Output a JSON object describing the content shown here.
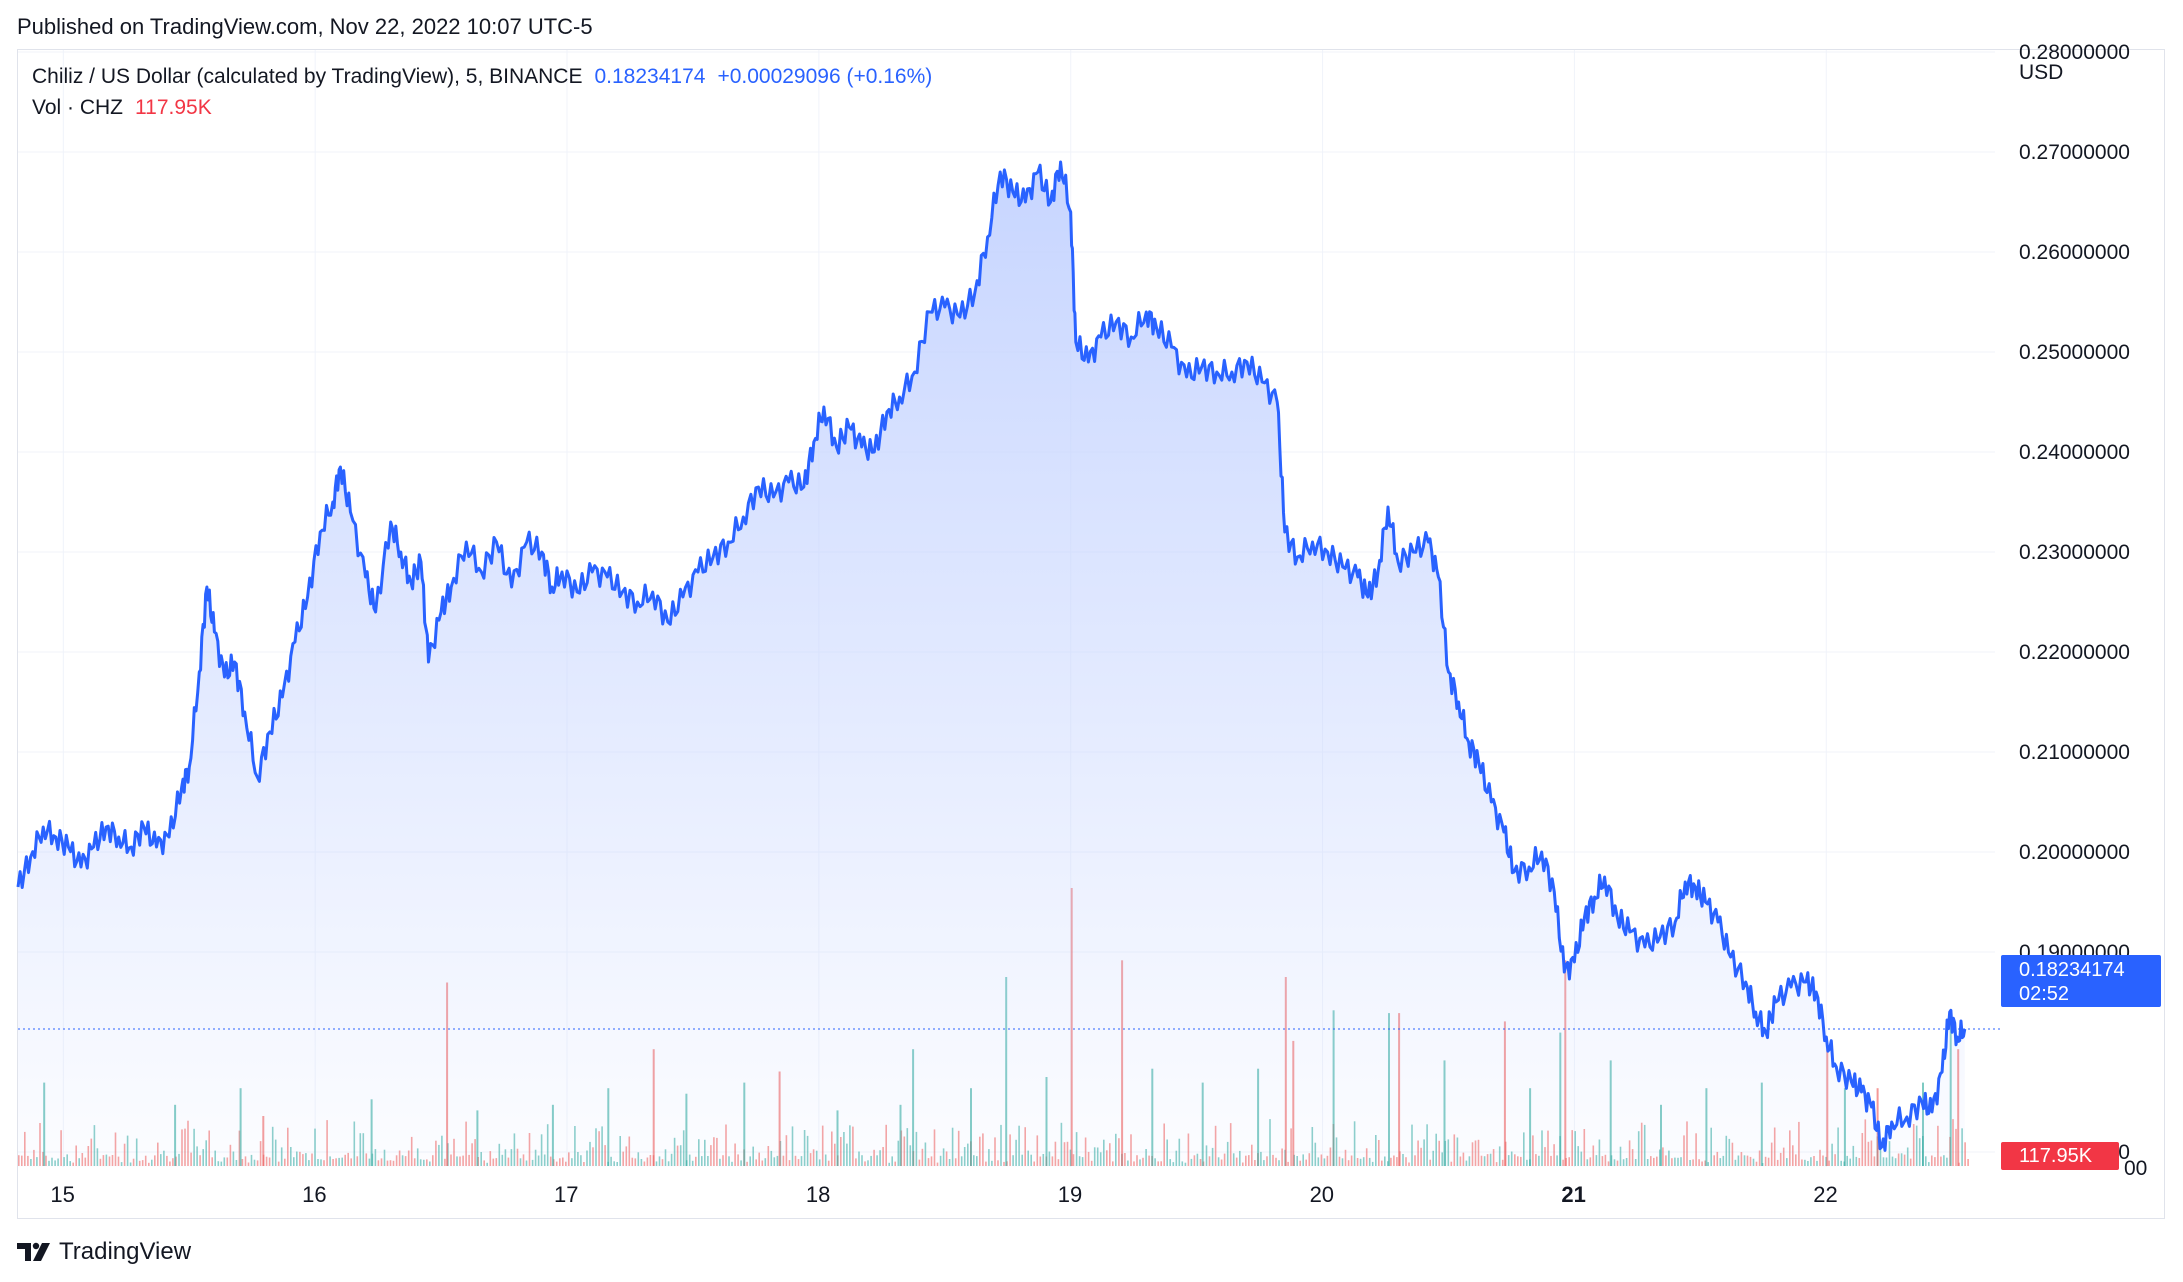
{
  "header": {
    "published": "Published on TradingView.com, Nov 22, 2022 10:07 UTC-5"
  },
  "legend": {
    "symbol": "Chiliz / US Dollar (calculated by TradingView), 5, BINANCE",
    "price": "0.18234174",
    "change": "+0.00029096 (+0.16%)",
    "volume_label": "Vol · CHZ",
    "volume_value": "117.95K"
  },
  "axis": {
    "currency": "USD"
  },
  "price_tag": {
    "price": "0.18234174",
    "countdown": "02:52"
  },
  "volume_tag": {
    "value": "117.95K"
  },
  "footer": {
    "brand": "TradingView"
  },
  "colors": {
    "line": "#2962ff",
    "area_top": "#c4d3ff",
    "up_volume": "#26a69a",
    "down_volume": "#ef5350",
    "grid": "#f0f3fa"
  },
  "chart_data": {
    "type": "area",
    "x_ticks": [
      {
        "label": "15",
        "t": 0.18,
        "bold": false
      },
      {
        "label": "16",
        "t": 1.18,
        "bold": false
      },
      {
        "label": "17",
        "t": 2.18,
        "bold": false
      },
      {
        "label": "18",
        "t": 3.18,
        "bold": false
      },
      {
        "label": "19",
        "t": 4.18,
        "bold": false
      },
      {
        "label": "20",
        "t": 5.18,
        "bold": false
      },
      {
        "label": "21",
        "t": 6.18,
        "bold": true
      },
      {
        "label": "22",
        "t": 7.18,
        "bold": false
      }
    ],
    "y_ticks": [
      "0.28000000",
      "0.27000000",
      "0.26000000",
      "0.25000000",
      "0.24000000",
      "0.23000000",
      "0.22000000",
      "0.21000000",
      "0.20000000",
      "0.19000000",
      "0.17000000"
    ],
    "y_tick_values": [
      0.28,
      0.27,
      0.26,
      0.25,
      0.24,
      0.23,
      0.22,
      0.21,
      0.2,
      0.19,
      0.17
    ],
    "ylim": [
      0.1685,
      0.2802
    ],
    "xlim": [
      0,
      7.85
    ],
    "series": [
      {
        "points": [
          [
            0.0,
            0.1965
          ],
          [
            0.05,
            0.1995
          ],
          [
            0.1,
            0.2025
          ],
          [
            0.15,
            0.2015
          ],
          [
            0.2,
            0.2005
          ],
          [
            0.25,
            0.1985
          ],
          [
            0.3,
            0.2005
          ],
          [
            0.35,
            0.2025
          ],
          [
            0.4,
            0.2015
          ],
          [
            0.45,
            0.2005
          ],
          [
            0.5,
            0.2025
          ],
          [
            0.55,
            0.2005
          ],
          [
            0.6,
            0.2015
          ],
          [
            0.65,
            0.2065
          ],
          [
            0.68,
            0.2085
          ],
          [
            0.72,
            0.218
          ],
          [
            0.75,
            0.2265
          ],
          [
            0.78,
            0.222
          ],
          [
            0.82,
            0.2175
          ],
          [
            0.86,
            0.219
          ],
          [
            0.9,
            0.214
          ],
          [
            0.95,
            0.2075
          ],
          [
            1.0,
            0.212
          ],
          [
            1.05,
            0.2155
          ],
          [
            1.1,
            0.221
          ],
          [
            1.15,
            0.2255
          ],
          [
            1.2,
            0.232
          ],
          [
            1.25,
            0.235
          ],
          [
            1.28,
            0.2385
          ],
          [
            1.32,
            0.234
          ],
          [
            1.38,
            0.2275
          ],
          [
            1.42,
            0.224
          ],
          [
            1.48,
            0.233
          ],
          [
            1.52,
            0.23
          ],
          [
            1.56,
            0.227
          ],
          [
            1.6,
            0.229
          ],
          [
            1.63,
            0.219
          ],
          [
            1.68,
            0.224
          ],
          [
            1.72,
            0.2265
          ],
          [
            1.78,
            0.231
          ],
          [
            1.84,
            0.228
          ],
          [
            1.9,
            0.231
          ],
          [
            1.96,
            0.2265
          ],
          [
            2.02,
            0.231
          ],
          [
            2.08,
            0.23
          ],
          [
            2.12,
            0.2265
          ],
          [
            2.16,
            0.228
          ],
          [
            2.22,
            0.226
          ],
          [
            2.28,
            0.228
          ],
          [
            2.34,
            0.2275
          ],
          [
            2.4,
            0.226
          ],
          [
            2.46,
            0.225
          ],
          [
            2.52,
            0.226
          ],
          [
            2.58,
            0.223
          ],
          [
            2.64,
            0.2255
          ],
          [
            2.7,
            0.228
          ],
          [
            2.76,
            0.2295
          ],
          [
            2.82,
            0.231
          ],
          [
            2.88,
            0.2335
          ],
          [
            2.94,
            0.2365
          ],
          [
            3.0,
            0.2355
          ],
          [
            3.06,
            0.237
          ],
          [
            3.12,
            0.2365
          ],
          [
            3.16,
            0.241
          ],
          [
            3.2,
            0.2445
          ],
          [
            3.25,
            0.2405
          ],
          [
            3.3,
            0.2425
          ],
          [
            3.35,
            0.2405
          ],
          [
            3.4,
            0.24
          ],
          [
            3.45,
            0.244
          ],
          [
            3.5,
            0.2455
          ],
          [
            3.56,
            0.248
          ],
          [
            3.62,
            0.254
          ],
          [
            3.68,
            0.2545
          ],
          [
            3.74,
            0.2535
          ],
          [
            3.8,
            0.256
          ],
          [
            3.85,
            0.2615
          ],
          [
            3.9,
            0.268
          ],
          [
            3.95,
            0.266
          ],
          [
            4.0,
            0.265
          ],
          [
            4.05,
            0.268
          ],
          [
            4.1,
            0.265
          ],
          [
            4.14,
            0.269
          ],
          [
            4.18,
            0.264
          ],
          [
            4.2,
            0.251
          ],
          [
            4.25,
            0.249
          ],
          [
            4.3,
            0.2515
          ],
          [
            4.36,
            0.253
          ],
          [
            4.42,
            0.2515
          ],
          [
            4.48,
            0.254
          ],
          [
            4.52,
            0.2525
          ],
          [
            4.58,
            0.2505
          ],
          [
            4.64,
            0.2475
          ],
          [
            4.7,
            0.2485
          ],
          [
            4.76,
            0.248
          ],
          [
            4.82,
            0.248
          ],
          [
            4.88,
            0.249
          ],
          [
            4.94,
            0.247
          ],
          [
            5.0,
            0.245
          ],
          [
            5.03,
            0.232
          ],
          [
            5.08,
            0.2295
          ],
          [
            5.14,
            0.231
          ],
          [
            5.2,
            0.23
          ],
          [
            5.26,
            0.2285
          ],
          [
            5.32,
            0.2275
          ],
          [
            5.36,
            0.2255
          ],
          [
            5.4,
            0.228
          ],
          [
            5.44,
            0.2345
          ],
          [
            5.48,
            0.229
          ],
          [
            5.54,
            0.23
          ],
          [
            5.6,
            0.231
          ],
          [
            5.64,
            0.2275
          ],
          [
            5.68,
            0.218
          ],
          [
            5.72,
            0.215
          ],
          [
            5.76,
            0.211
          ],
          [
            5.8,
            0.209
          ],
          [
            5.85,
            0.205
          ],
          [
            5.9,
            0.202
          ],
          [
            5.94,
            0.198
          ],
          [
            6.0,
            0.1985
          ],
          [
            6.05,
            0.2
          ],
          [
            6.1,
            0.196
          ],
          [
            6.14,
            0.188
          ],
          [
            6.18,
            0.189
          ],
          [
            6.22,
            0.1935
          ],
          [
            6.26,
            0.1955
          ],
          [
            6.3,
            0.1975
          ],
          [
            6.35,
            0.1935
          ],
          [
            6.4,
            0.192
          ],
          [
            6.46,
            0.1905
          ],
          [
            6.52,
            0.1915
          ],
          [
            6.58,
            0.193
          ],
          [
            6.62,
            0.197
          ],
          [
            6.66,
            0.1965
          ],
          [
            6.7,
            0.195
          ],
          [
            6.75,
            0.193
          ],
          [
            6.8,
            0.1895
          ],
          [
            6.86,
            0.187
          ],
          [
            6.9,
            0.184
          ],
          [
            6.94,
            0.182
          ],
          [
            6.98,
            0.185
          ],
          [
            7.04,
            0.1865
          ],
          [
            7.1,
            0.187
          ],
          [
            7.14,
            0.186
          ],
          [
            7.18,
            0.1815
          ],
          [
            7.22,
            0.1785
          ],
          [
            7.28,
            0.177
          ],
          [
            7.32,
            0.176
          ],
          [
            7.36,
            0.1745
          ],
          [
            7.4,
            0.1705
          ],
          [
            7.44,
            0.173
          ],
          [
            7.5,
            0.1735
          ],
          [
            7.56,
            0.175
          ],
          [
            7.6,
            0.174
          ],
          [
            7.64,
            0.178
          ],
          [
            7.67,
            0.184
          ],
          [
            7.7,
            0.1815
          ],
          [
            7.73,
            0.1823
          ]
        ]
      }
    ],
    "volume": {
      "spikes": [
        [
          0.1,
          0.3,
          "up"
        ],
        [
          0.62,
          0.22,
          "up"
        ],
        [
          0.88,
          0.28,
          "up"
        ],
        [
          0.97,
          0.18,
          "down"
        ],
        [
          1.4,
          0.24,
          "up"
        ],
        [
          1.7,
          0.66,
          "down"
        ],
        [
          1.82,
          0.2,
          "up"
        ],
        [
          2.12,
          0.22,
          "up"
        ],
        [
          2.34,
          0.28,
          "up"
        ],
        [
          2.52,
          0.42,
          "down"
        ],
        [
          2.65,
          0.26,
          "up"
        ],
        [
          2.88,
          0.3,
          "up"
        ],
        [
          3.02,
          0.34,
          "down"
        ],
        [
          3.25,
          0.2,
          "up"
        ],
        [
          3.5,
          0.22,
          "up"
        ],
        [
          3.55,
          0.42,
          "up"
        ],
        [
          3.78,
          0.28,
          "up"
        ],
        [
          3.92,
          0.68,
          "up"
        ],
        [
          4.08,
          0.32,
          "up"
        ],
        [
          4.18,
          1.0,
          "down"
        ],
        [
          4.38,
          0.74,
          "down"
        ],
        [
          4.5,
          0.35,
          "up"
        ],
        [
          4.7,
          0.3,
          "up"
        ],
        [
          4.92,
          0.35,
          "up"
        ],
        [
          5.03,
          0.68,
          "down"
        ],
        [
          5.06,
          0.45,
          "down"
        ],
        [
          5.22,
          0.56,
          "up"
        ],
        [
          5.44,
          0.55,
          "up"
        ],
        [
          5.48,
          0.55,
          "down"
        ],
        [
          5.66,
          0.38,
          "up"
        ],
        [
          5.9,
          0.52,
          "down"
        ],
        [
          6.0,
          0.28,
          "up"
        ],
        [
          6.12,
          0.48,
          "up"
        ],
        [
          6.14,
          0.74,
          "down"
        ],
        [
          6.32,
          0.38,
          "up"
        ],
        [
          6.52,
          0.22,
          "up"
        ],
        [
          6.7,
          0.28,
          "up"
        ],
        [
          6.92,
          0.3,
          "up"
        ],
        [
          7.18,
          0.42,
          "down"
        ],
        [
          7.25,
          0.28,
          "up"
        ],
        [
          7.38,
          0.28,
          "down"
        ],
        [
          7.56,
          0.3,
          "up"
        ],
        [
          7.67,
          0.52,
          "up"
        ],
        [
          7.7,
          0.42,
          "down"
        ]
      ]
    }
  }
}
